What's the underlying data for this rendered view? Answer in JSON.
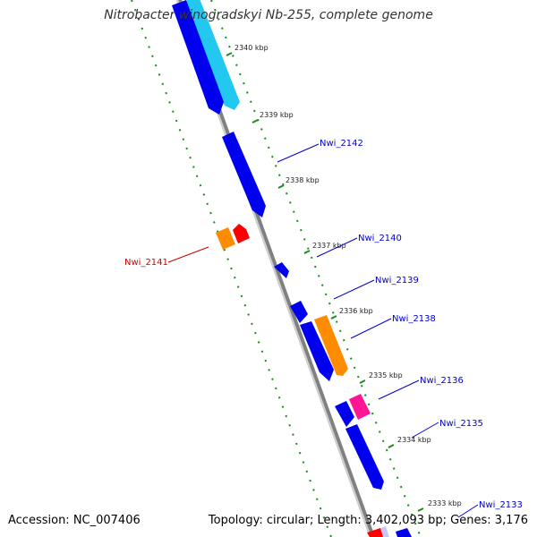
{
  "title": "Nitrobacter winogradskyi Nb-255, complete genome",
  "footer": {
    "accession": "Accession: NC_007406",
    "summary": "Topology: circular; Length: 3,402,093 bp; Genes: 3,176"
  },
  "colors": {
    "blue": "#0000ee",
    "cyan": "#22c8f0",
    "lavender": "#c8c8f8",
    "orange": "#ff8c00",
    "red": "#ff0000",
    "pink": "#ff1493",
    "backbone": "#808080",
    "tick": "#1a8a1a",
    "label_blue": "#0000cc",
    "label_red": "#cc0000"
  },
  "ticks": [
    "2340 kbp",
    "2339 kbp",
    "2338 kbp",
    "2337 kbp",
    "2336 kbp",
    "2335 kbp",
    "2334 kbp",
    "2333 kbp"
  ],
  "gene_labels": [
    "Nwi_2142",
    "Nwi_2140",
    "Nwi_2141",
    "Nwi_2139",
    "Nwi_2138",
    "Nwi_2136",
    "Nwi_2135",
    "Nwi_2133"
  ]
}
